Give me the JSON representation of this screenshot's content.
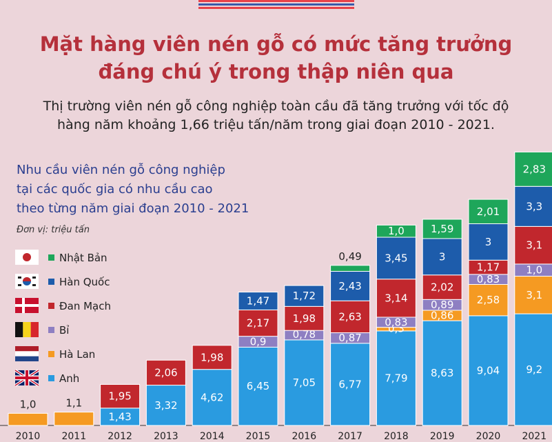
{
  "header": {
    "title_line1": "Mặt hàng viên nén gỗ có mức tăng trưởng",
    "title_line2": "đáng chú ý trong thập niên qua",
    "subtitle_line1": "Thị trường viên nén gỗ công nghiệp toàn cầu đã tăng trưởng với tốc độ",
    "subtitle_line2": "hàng năm khoảng 1,66 triệu tấn/năm trong giai đoạn 2010 - 2021."
  },
  "colors": {
    "background": "#ecd5da",
    "title": "#b5303b",
    "stripe_red": "#e8414a",
    "stripe_blue": "#3a58a8"
  },
  "chart_data": {
    "type": "bar",
    "stacked": true,
    "title_lines": [
      "Nhu cầu viên nén gỗ công nghiệp",
      "tại các quốc gia có nhu cầu cao",
      "theo từng năm giai đoạn 2010 - 2021"
    ],
    "unit": "Đơn vị: triệu tấn",
    "categories": [
      "2010",
      "2011",
      "2012",
      "2013",
      "2014",
      "2015",
      "2016",
      "2017",
      "2018",
      "2019",
      "2020",
      "2021"
    ],
    "series": [
      {
        "name": "Anh",
        "color": "#2a9be0",
        "flag": "uk-flag",
        "values": [
          0,
          0,
          1.43,
          3.32,
          4.62,
          6.45,
          7.05,
          6.77,
          7.79,
          8.63,
          9.04,
          9.2
        ],
        "labels": [
          "",
          "",
          "1,43",
          "3,32",
          "4,62",
          "6,45",
          "7,05",
          "6,77",
          "7,79",
          "8,63",
          "9,04",
          "9,2"
        ]
      },
      {
        "name": "Hà Lan",
        "color": "#f59a22",
        "flag": "netherlands-flag",
        "values": [
          1.0,
          1.1,
          0,
          0,
          0,
          0,
          0,
          0,
          0.3,
          0.86,
          2.58,
          3.1
        ],
        "labels": [
          "1,0",
          "1,1",
          "",
          "",
          "",
          "",
          "",
          "",
          "0,3",
          "0,86",
          "2,58",
          "3,1"
        ]
      },
      {
        "name": "Bỉ",
        "color": "#8e7fc2",
        "flag": "belgium-flag",
        "values": [
          0,
          0,
          0,
          0,
          0,
          0.9,
          0.78,
          0.87,
          0.83,
          0.89,
          0.83,
          1.0
        ],
        "labels": [
          "",
          "",
          "",
          "",
          "",
          "0,9",
          "0,78",
          "0,87",
          "0,83",
          "0,89",
          "0,83",
          "1,0"
        ]
      },
      {
        "name": "Đan Mạch",
        "color": "#c1272d",
        "flag": "denmark-flag",
        "values": [
          0,
          0,
          1.95,
          2.06,
          1.98,
          2.17,
          1.98,
          2.63,
          3.14,
          2.02,
          1.17,
          3.1
        ],
        "labels": [
          "",
          "",
          "1,95",
          "2,06",
          "1,98",
          "2,17",
          "1,98",
          "2,63",
          "3,14",
          "2,02",
          "1,17",
          "3,1"
        ]
      },
      {
        "name": "Hàn Quốc",
        "color": "#1d5cab",
        "flag": "korea-flag",
        "values": [
          0,
          0,
          0,
          0,
          0,
          1.47,
          1.72,
          2.43,
          3.45,
          3.0,
          3.0,
          3.3
        ],
        "labels": [
          "",
          "",
          "",
          "",
          "",
          "1,47",
          "1,72",
          "2,43",
          "3,45",
          "3",
          "3",
          "3,3"
        ]
      },
      {
        "name": "Nhật Bản",
        "color": "#1ea65a",
        "flag": "japan-flag",
        "values": [
          0,
          0,
          0,
          0,
          0,
          0,
          0,
          0.49,
          1.0,
          1.59,
          2.01,
          2.83
        ],
        "labels": [
          "",
          "",
          "",
          "",
          "",
          "",
          "",
          "0,49",
          "1,0",
          "1,59",
          "2,01",
          "2,83"
        ]
      }
    ],
    "legend_order": [
      "Nhật Bản",
      "Hàn Quốc",
      "Đan Mạch",
      "Bỉ",
      "Hà Lan",
      "Anh"
    ],
    "legend_position": "left",
    "grid": false
  }
}
